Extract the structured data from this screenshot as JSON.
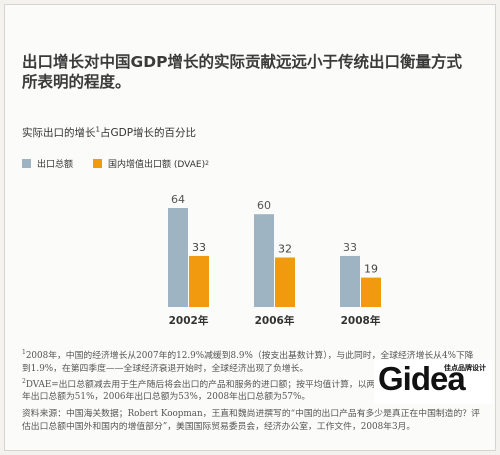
{
  "title": "出口增长对中国GDP增长的实际贡献远远小于传统出口衡量方式所表明的程度。",
  "subtitle": {
    "text": "实际出口的增长",
    "sup": "1",
    "rest": "占GDP增长的百分比"
  },
  "legend": [
    {
      "label": "出口总额",
      "sup": "",
      "color": "#9fb4c3"
    },
    {
      "label": "国内增值出口额 (DVAE)",
      "sup": "2",
      "color": "#f29a0f"
    }
  ],
  "chart_data": {
    "type": "bar",
    "categories": [
      "2002年",
      "2006年",
      "2008年"
    ],
    "series": [
      {
        "name": "出口总额",
        "values": [
          64,
          60,
          33
        ],
        "color": "#9fb4c3"
      },
      {
        "name": "国内增值出口额 (DVAE)",
        "values": [
          33,
          32,
          19
        ],
        "color": "#f29a0f"
      }
    ],
    "title": "实际出口的增长1占GDP增长的百分比",
    "xlabel": "",
    "ylabel": "",
    "ylim": [
      0,
      64
    ],
    "grid": false,
    "legend": "top-left"
  },
  "notes": {
    "n1": "2008年，中国的经济增长从2007年的12.9%减缓到8.9%（按支出基数计算），与此同时，全球经济增长从4%下降到1.9%，在第四季度——全球经济衰退开始时，全球经济出现了负增长。",
    "n2": "DVAE=出口总额减去用于生产随后将会出口的产品和服务的进口额；按平均值计算，以两年一次计算。数据：2002年出口总额为51%，2006年出口总额为53%，2008年出口总额为57%。",
    "source": "资料来源：中国海关数据；Robert Koopman，王直和魏尚进撰写的“中国的出口产品有多少是真正在中国制造的？评估出口总额中国外和国内的增值部分”，美国国际贸易委员会，经济办公室，工作文件，2008年3月。"
  },
  "logo": {
    "word": "Gidea",
    "tag": "佳点品牌设计"
  }
}
